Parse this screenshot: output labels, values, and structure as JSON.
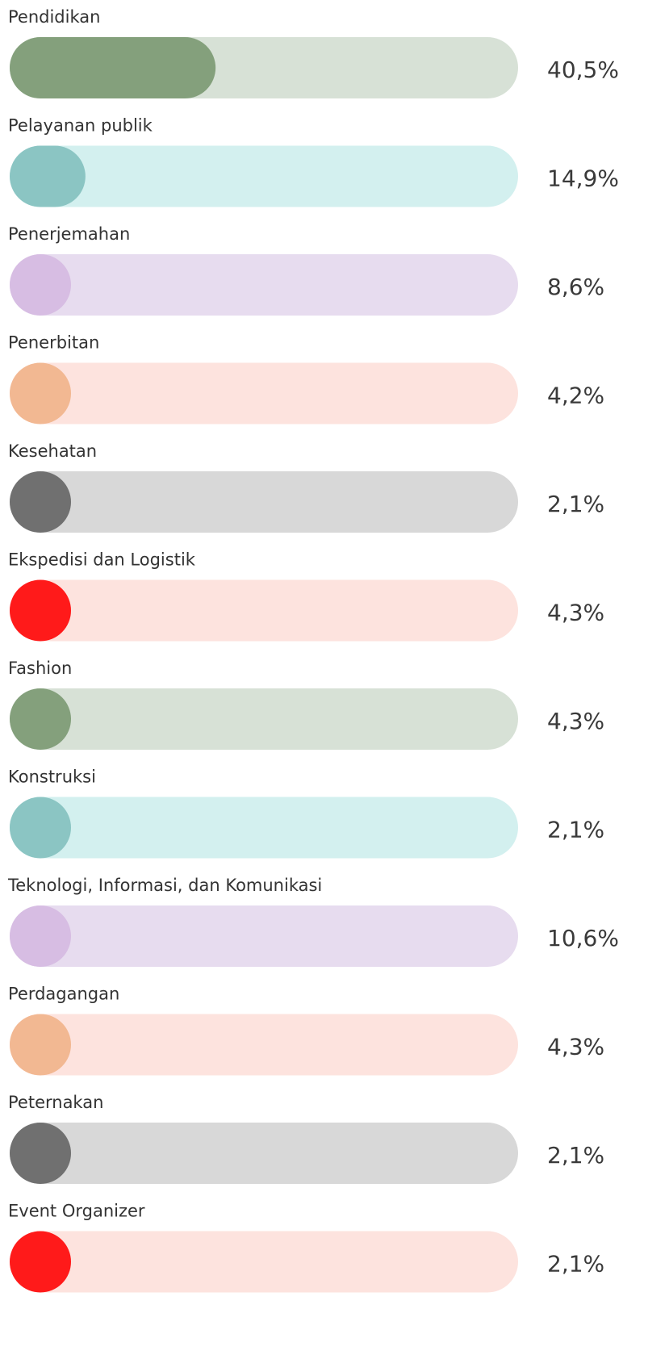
{
  "chart_data": {
    "type": "bar",
    "categories": [
      "Pendidikan",
      "Pelayanan publik",
      "Penerjemahan",
      "Penerbitan",
      "Kesehatan",
      "Ekspedisi dan Logistik",
      "Fashion",
      "Konstruksi",
      "Teknologi, Informasi, dan Komunikasi",
      "Perdagangan",
      "Peternakan",
      "Event Organizer"
    ],
    "values": [
      40.5,
      14.9,
      8.6,
      4.2,
      2.1,
      4.3,
      4.3,
      2.1,
      10.6,
      4.3,
      2.1,
      2.1
    ],
    "value_labels": [
      "40,5%",
      "14,9%",
      "8,6%",
      "4,2%",
      "2,1%",
      "4,3%",
      "4,3%",
      "2,1%",
      "10,6%",
      "4,3%",
      "2,1%",
      "2,1%"
    ],
    "colors": [
      "#84a07c",
      "#8bc5c3",
      "#d7bde3",
      "#f2b892",
      "#707070",
      "#ff1a1a",
      "#84a07c",
      "#8bc5c3",
      "#d7bde3",
      "#f2b892",
      "#707070",
      "#ff1a1a"
    ],
    "track_colors": [
      "#d7e1d6",
      "#d3f0ef",
      "#e7dcef",
      "#fde3de",
      "#d8d8d8",
      "#fde3de",
      "#d7e1d6",
      "#d3f0ef",
      "#e7dcef",
      "#fde3de",
      "#d8d8d8",
      "#fde3de"
    ],
    "xlim": [
      0,
      100
    ]
  }
}
